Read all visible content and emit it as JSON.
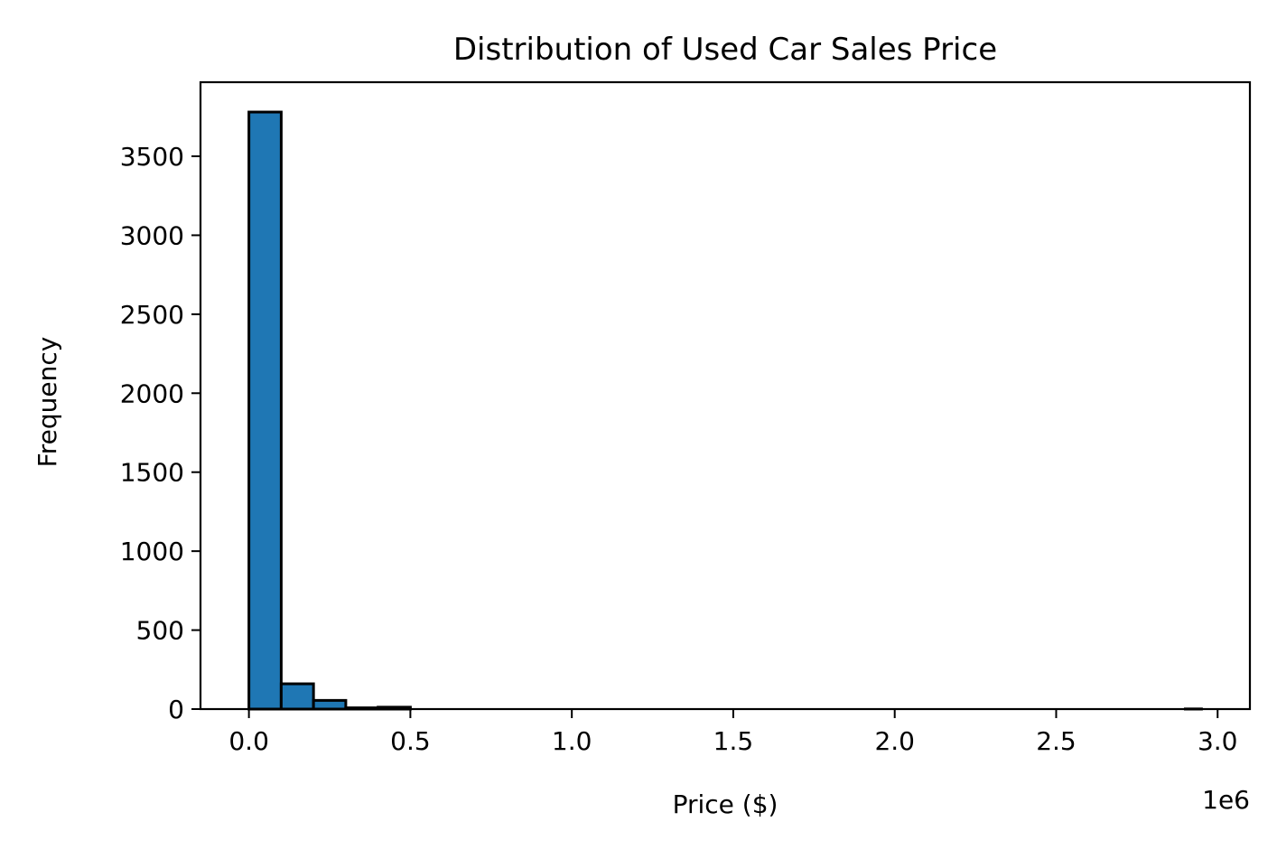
{
  "chart_data": {
    "type": "bar",
    "title": "Distribution of Used Car Sales Price",
    "xlabel": "Price ($)",
    "ylabel": "Frequency",
    "x_offset_label": "1e6",
    "x_scale_factor": 1000000,
    "bin_edges": [
      0,
      100000,
      200000,
      300000,
      400000,
      500000,
      600000,
      700000,
      800000,
      900000,
      1000000,
      1100000,
      1200000,
      1300000,
      1400000,
      1500000,
      1600000,
      1700000,
      1800000,
      1900000,
      2000000,
      2100000,
      2200000,
      2300000,
      2400000,
      2500000,
      2600000,
      2700000,
      2800000,
      2900000,
      2950000
    ],
    "values": [
      3780,
      160,
      55,
      8,
      12,
      0,
      0,
      0,
      0,
      0,
      0,
      0,
      0,
      0,
      0,
      0,
      0,
      0,
      0,
      0,
      0,
      0,
      0,
      0,
      0,
      0,
      0,
      0,
      0,
      1
    ],
    "xlim": [
      -150000,
      3100000
    ],
    "ylim": [
      0,
      3969
    ],
    "x_ticks": [
      0,
      500000,
      1000000,
      1500000,
      2000000,
      2500000,
      3000000
    ],
    "x_tick_labels": [
      "0.0",
      "0.5",
      "1.0",
      "1.5",
      "2.0",
      "2.5",
      "3.0"
    ],
    "y_ticks": [
      0,
      500,
      1000,
      1500,
      2000,
      2500,
      3000,
      3500
    ],
    "y_tick_labels": [
      "0",
      "500",
      "1000",
      "1500",
      "2000",
      "2500",
      "3000",
      "3500"
    ],
    "grid": false,
    "legend": "none",
    "bar_color": "#1f77b4",
    "edge_color": "#000000"
  }
}
